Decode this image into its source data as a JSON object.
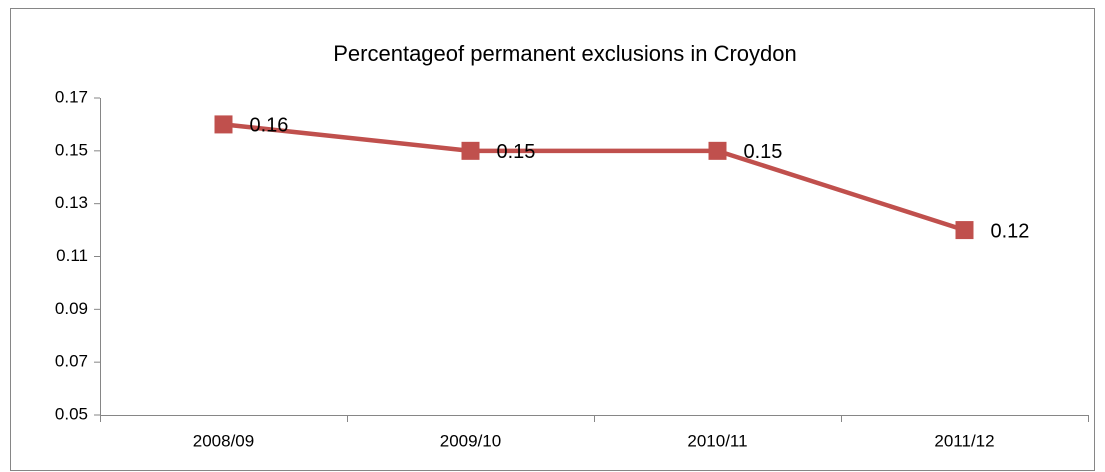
{
  "chart_data": {
    "type": "line",
    "title": "Percentageof permanent exclusions in Croydon",
    "categories": [
      "2008/09",
      "2009/10",
      "2010/11",
      "2011/12"
    ],
    "values": [
      0.16,
      0.15,
      0.15,
      0.12
    ],
    "color": "#c0504d",
    "ylim": [
      0.05,
      0.17
    ],
    "yticks": [
      0.05,
      0.07,
      0.09,
      0.11,
      0.13,
      0.15,
      0.17
    ],
    "grid": false
  }
}
